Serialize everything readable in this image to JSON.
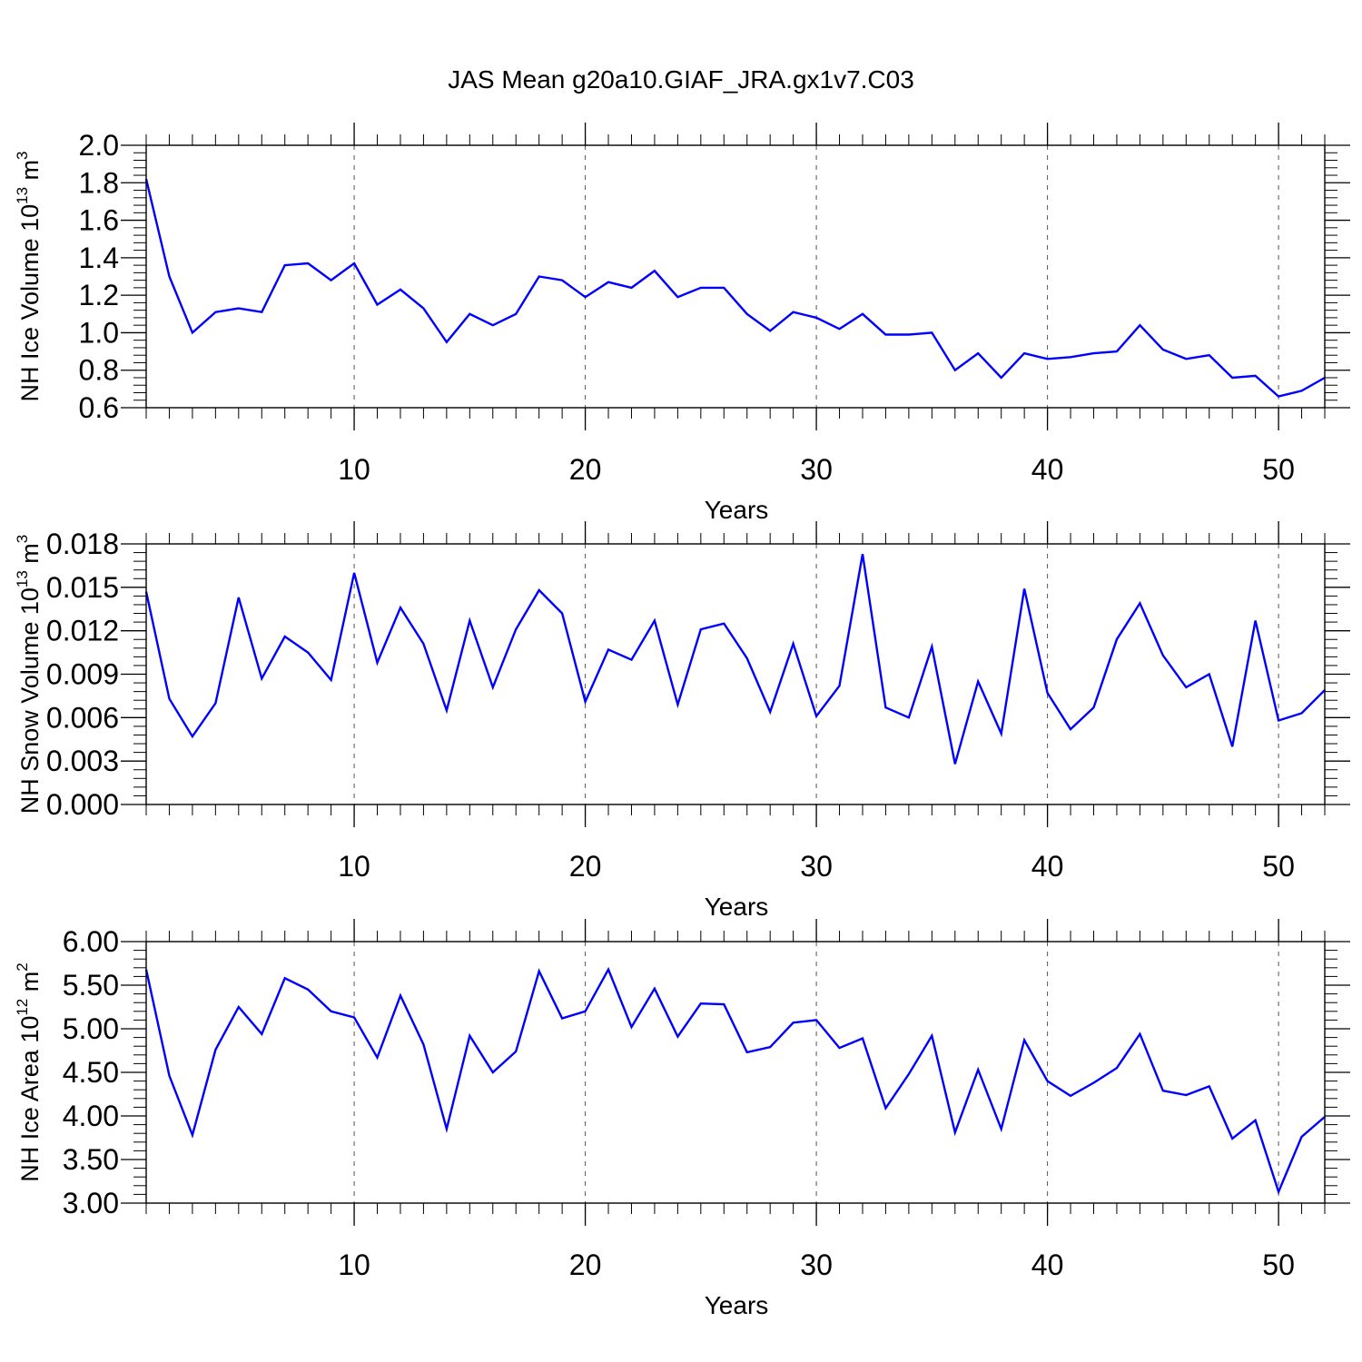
{
  "title": "JAS Mean g20a10.GIAF_JRA.gx1v7.C03",
  "line_color": "#0000ff",
  "chart_data": [
    {
      "type": "line",
      "xlabel": "Years",
      "ylabel_main": "NH Ice Volume 10",
      "ylabel_exp": "13",
      "ylabel_unit": " m",
      "ylabel_unit_exp": "3",
      "xlim": [
        1,
        52
      ],
      "ylim": [
        0.6,
        2.0
      ],
      "yticks": [
        "0.6",
        "0.8",
        "1.0",
        "1.2",
        "1.4",
        "1.6",
        "1.8",
        "2.0"
      ],
      "ytick_values": [
        0.6,
        0.8,
        1.0,
        1.2,
        1.4,
        1.6,
        1.8,
        2.0
      ],
      "xticks": [
        "10",
        "20",
        "30",
        "40",
        "50"
      ],
      "xtick_values": [
        10,
        20,
        30,
        40,
        50
      ],
      "series": [
        {
          "name": "NH Ice Volume",
          "x": [
            1,
            2,
            3,
            4,
            5,
            6,
            7,
            8,
            9,
            10,
            11,
            12,
            13,
            14,
            15,
            16,
            17,
            18,
            19,
            20,
            21,
            22,
            23,
            24,
            25,
            26,
            27,
            28,
            29,
            30,
            31,
            32,
            33,
            34,
            35,
            36,
            37,
            38,
            39,
            40,
            41,
            42,
            43,
            44,
            45,
            46,
            47,
            48,
            49,
            50,
            51,
            52
          ],
          "values": [
            1.82,
            1.3,
            1.0,
            1.11,
            1.13,
            1.11,
            1.36,
            1.37,
            1.28,
            1.37,
            1.15,
            1.23,
            1.13,
            0.95,
            1.1,
            1.04,
            1.1,
            1.3,
            1.28,
            1.19,
            1.27,
            1.24,
            1.33,
            1.19,
            1.24,
            1.24,
            1.1,
            1.01,
            1.11,
            1.08,
            1.02,
            1.1,
            0.99,
            0.99,
            1.0,
            0.8,
            0.89,
            0.76,
            0.89,
            0.86,
            0.87,
            0.89,
            0.9,
            1.04,
            0.91,
            0.86,
            0.88,
            0.76,
            0.77,
            0.66,
            0.69,
            0.76
          ]
        }
      ]
    },
    {
      "type": "line",
      "xlabel": "Years",
      "ylabel_main": "NH Snow Volume 10",
      "ylabel_exp": "13",
      "ylabel_unit": " m",
      "ylabel_unit_exp": "3",
      "xlim": [
        1,
        52
      ],
      "ylim": [
        0.0,
        0.018
      ],
      "yticks": [
        "0.000",
        "0.003",
        "0.006",
        "0.009",
        "0.012",
        "0.015",
        "0.018"
      ],
      "ytick_values": [
        0.0,
        0.003,
        0.006,
        0.009,
        0.012,
        0.015,
        0.018
      ],
      "xticks": [
        "10",
        "20",
        "30",
        "40",
        "50"
      ],
      "xtick_values": [
        10,
        20,
        30,
        40,
        50
      ],
      "series": [
        {
          "name": "NH Snow Volume",
          "x": [
            1,
            2,
            3,
            4,
            5,
            6,
            7,
            8,
            9,
            10,
            11,
            12,
            13,
            14,
            15,
            16,
            17,
            18,
            19,
            20,
            21,
            22,
            23,
            24,
            25,
            26,
            27,
            28,
            29,
            30,
            31,
            32,
            33,
            34,
            35,
            36,
            37,
            38,
            39,
            40,
            41,
            42,
            43,
            44,
            45,
            46,
            47,
            48,
            49,
            50,
            51,
            52
          ],
          "values": [
            0.0147,
            0.0073,
            0.0047,
            0.007,
            0.0143,
            0.0087,
            0.0116,
            0.0105,
            0.0086,
            0.016,
            0.0098,
            0.0136,
            0.0111,
            0.0065,
            0.0127,
            0.0081,
            0.0121,
            0.0148,
            0.0132,
            0.0071,
            0.0107,
            0.01,
            0.0127,
            0.0069,
            0.0121,
            0.0125,
            0.0101,
            0.0064,
            0.0111,
            0.0061,
            0.0082,
            0.0173,
            0.0067,
            0.006,
            0.0109,
            0.0028,
            0.0085,
            0.0049,
            0.0149,
            0.0077,
            0.0052,
            0.0067,
            0.0114,
            0.0139,
            0.0103,
            0.0081,
            0.009,
            0.004,
            0.0127,
            0.0058,
            0.0063,
            0.0079
          ]
        }
      ]
    },
    {
      "type": "line",
      "xlabel": "Years",
      "ylabel_main": "NH Ice Area 10",
      "ylabel_exp": "12",
      "ylabel_unit": " m",
      "ylabel_unit_exp": "2",
      "xlim": [
        1,
        52
      ],
      "ylim": [
        3.0,
        6.0
      ],
      "yticks": [
        "3.00",
        "3.50",
        "4.00",
        "4.50",
        "5.00",
        "5.50",
        "6.00"
      ],
      "ytick_values": [
        3.0,
        3.5,
        4.0,
        4.5,
        5.0,
        5.5,
        6.0
      ],
      "xticks": [
        "10",
        "20",
        "30",
        "40",
        "50"
      ],
      "xtick_values": [
        10,
        20,
        30,
        40,
        50
      ],
      "series": [
        {
          "name": "NH Ice Area",
          "x": [
            1,
            2,
            3,
            4,
            5,
            6,
            7,
            8,
            9,
            10,
            11,
            12,
            13,
            14,
            15,
            16,
            17,
            18,
            19,
            20,
            21,
            22,
            23,
            24,
            25,
            26,
            27,
            28,
            29,
            30,
            31,
            32,
            33,
            34,
            35,
            36,
            37,
            38,
            39,
            40,
            41,
            42,
            43,
            44,
            45,
            46,
            47,
            48,
            49,
            50,
            51,
            52
          ],
          "values": [
            5.68,
            4.46,
            3.78,
            4.76,
            5.25,
            4.94,
            5.58,
            5.45,
            5.2,
            5.13,
            4.67,
            5.38,
            4.82,
            3.85,
            4.92,
            4.5,
            4.74,
            5.66,
            5.12,
            5.2,
            5.68,
            5.02,
            5.46,
            4.91,
            5.29,
            5.28,
            4.73,
            4.79,
            5.07,
            5.1,
            4.78,
            4.89,
            4.09,
            4.48,
            4.92,
            3.81,
            4.53,
            3.85,
            4.87,
            4.4,
            4.23,
            4.38,
            4.55,
            4.94,
            4.29,
            4.24,
            4.34,
            3.74,
            3.95,
            3.13,
            3.76,
            3.99
          ]
        }
      ]
    }
  ]
}
